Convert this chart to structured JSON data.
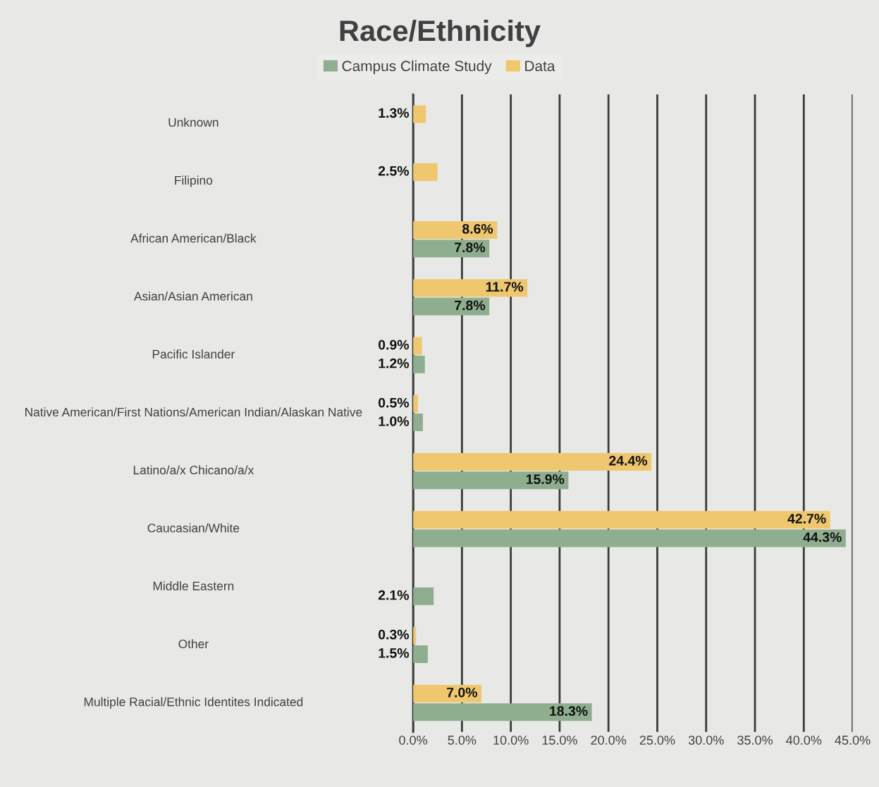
{
  "chart_data": {
    "type": "bar",
    "orientation": "horizontal",
    "title": "Race/Ethnicity",
    "categories": [
      "Unknown",
      "Filipino",
      "African American/Black",
      "Asian/Asian American",
      "Pacific Islander",
      "Native American/First Nations/American Indian/Alaskan Native",
      "Latino/a/x Chicano/a/x",
      "Caucasian/White",
      "Middle Eastern",
      "Other",
      "Multiple Racial/Ethnic Identites Indicated"
    ],
    "series": [
      {
        "name": "Campus Climate Study",
        "color": "#8fae8f",
        "values": [
          null,
          null,
          7.8,
          7.8,
          1.2,
          1.0,
          15.9,
          44.3,
          2.1,
          1.5,
          18.3
        ],
        "value_labels": [
          null,
          null,
          "7.8%",
          "7.8%",
          "1.2%",
          "1.0%",
          "15.9%",
          "44.3%",
          "2.1%",
          "1.5%",
          "18.3%"
        ]
      },
      {
        "name": "Data",
        "color": "#efc76e",
        "values": [
          1.3,
          2.5,
          8.6,
          11.7,
          0.9,
          0.5,
          24.4,
          42.7,
          null,
          0.3,
          7.0
        ],
        "value_labels": [
          "1.3%",
          "2.5%",
          "8.6%",
          "11.7%",
          "0.9%",
          "0.5%",
          "24.4%",
          "42.7%",
          null,
          "0.3%",
          "7.0%"
        ]
      }
    ],
    "xlim": [
      0,
      45
    ],
    "xticks": [
      {
        "value": 0,
        "label": "0.0%"
      },
      {
        "value": 5,
        "label": "5.0%"
      },
      {
        "value": 10,
        "label": "10.0%"
      },
      {
        "value": 15,
        "label": "15.0%"
      },
      {
        "value": 20,
        "label": "20.0%"
      },
      {
        "value": 25,
        "label": "25.0%"
      },
      {
        "value": 30,
        "label": "30.0%"
      },
      {
        "value": 35,
        "label": "35.0%"
      },
      {
        "value": 40,
        "label": "40.0%"
      },
      {
        "value": 45,
        "label": "45.0%"
      }
    ],
    "grid": "x",
    "legend": "top"
  }
}
